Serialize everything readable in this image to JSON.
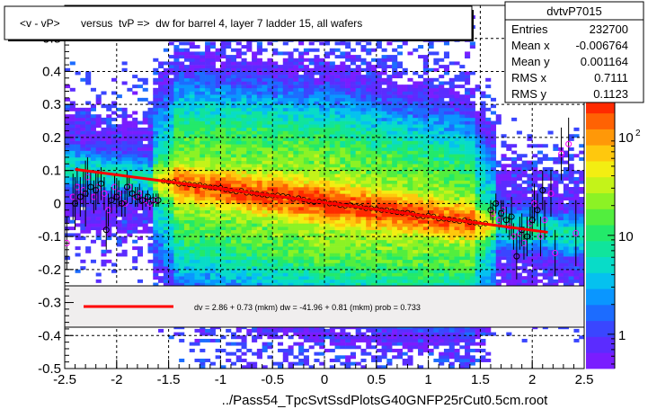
{
  "chart_data": {
    "type": "heatmap",
    "title": "<v - vP>       versus  tvP =>  dw for barrel 4, layer 7 ladder 15, all wafers",
    "xlabel": "../Pass54_TpcSvtSsdPlotsG40GNFP25rCut0.5cm.root",
    "ylabel": "",
    "xlim": [
      -2.5,
      2.5
    ],
    "ylim": [
      -0.5,
      0.6
    ],
    "x_ticks": [
      "-2.5",
      "-2",
      "-1.5",
      "-1",
      "-0.5",
      "0",
      "0.5",
      "1",
      "1.5",
      "2",
      "2.5"
    ],
    "x_tick_values": [
      -2.5,
      -2,
      -1.5,
      -1,
      -0.5,
      0,
      0.5,
      1,
      1.5,
      2,
      2.5
    ],
    "y_ticks": [
      "-0.5",
      "-0.4",
      "-0.3",
      "-0.2",
      "-0.1",
      "0",
      "0.1",
      "0.2",
      "0.3",
      "0.4",
      "0.5"
    ],
    "y_tick_values": [
      -0.5,
      -0.4,
      -0.3,
      -0.2,
      -0.1,
      0,
      0.1,
      0.2,
      0.3,
      0.4,
      0.5
    ],
    "grid": true,
    "colorbar": {
      "labels": [
        "1",
        "10",
        "10"
      ],
      "label_values": [
        1,
        10,
        100
      ],
      "exponent": "2",
      "range": [
        0.45,
        250
      ]
    },
    "stats": {
      "name": "dvtvP7015",
      "rows": [
        {
          "label": "Entries",
          "value": "232700"
        },
        {
          "label": "Mean x",
          "value": "-0.006764"
        },
        {
          "label": "Mean y",
          "value": "0.001164"
        },
        {
          "label": "RMS x",
          "value": "0.7111"
        },
        {
          "label": "RMS y",
          "value": "0.1123"
        }
      ]
    },
    "fit": {
      "legend_text": "dv =    2.86 +  0.73 (mkm) dw =  -41.96 +  0.81 (mkm) prob = 0.733",
      "x_range": [
        -2.4,
        2.15
      ],
      "intercept": 0.00286,
      "slope": -0.04196,
      "color": "#ff0000"
    },
    "profile_black": {
      "x": [
        -2.4,
        -2.35,
        -2.3,
        -2.25,
        -2.2,
        -2.15,
        -2.1,
        -2.05,
        -2.0,
        -1.95,
        -1.9,
        -1.85,
        -1.8,
        -1.75,
        -1.7,
        -1.65,
        -1.6,
        1.6,
        1.65,
        1.7,
        1.75,
        1.8,
        1.85,
        1.9,
        1.95,
        2.0,
        2.05,
        2.1
      ],
      "y": [
        0.0,
        0.02,
        0.03,
        0.05,
        0.04,
        0.06,
        -0.08,
        0.01,
        0.02,
        0.0,
        0.05,
        0.03,
        0.02,
        0.01,
        0.02,
        0.01,
        0.01,
        -0.02,
        0.0,
        -0.03,
        -0.05,
        -0.04,
        -0.16,
        -0.08,
        -0.1,
        -0.05,
        -0.02,
        0.04
      ],
      "err": [
        0.08,
        0.06,
        0.1,
        0.05,
        0.06,
        0.05,
        0.06,
        0.04,
        0.05,
        0.04,
        0.05,
        0.03,
        0.03,
        0.03,
        0.02,
        0.02,
        0.02,
        0.03,
        0.03,
        0.04,
        0.04,
        0.06,
        0.07,
        0.05,
        0.06,
        0.05,
        0.05,
        0.06
      ]
    },
    "profile_magenta": {
      "x": [
        -2.48,
        -2.42,
        -2.38,
        -2.32,
        -2.28,
        -2.22,
        -2.18,
        -2.12,
        -2.08,
        -2.02,
        -1.98,
        -1.92,
        -1.88,
        -1.82,
        -1.78,
        -1.72,
        -1.68,
        -1.62,
        1.62,
        1.68,
        1.72,
        1.78,
        1.82,
        1.88,
        1.92,
        1.98,
        2.02,
        2.08,
        2.12,
        2.18,
        2.22,
        2.28,
        2.35,
        2.42
      ],
      "y": [
        -0.12,
        0.02,
        0.05,
        0.04,
        0.08,
        0.02,
        0.05,
        0.03,
        -0.02,
        0.05,
        0.03,
        0.0,
        0.05,
        0.02,
        0.03,
        0.01,
        0.0,
        0.01,
        -0.03,
        -0.05,
        -0.02,
        -0.07,
        -0.1,
        -0.09,
        -0.12,
        -0.06,
        0.0,
        -0.1,
        -0.05,
        0.03,
        -0.15,
        0.15,
        0.18,
        -0.09
      ],
      "err": [
        0.08,
        0.07,
        0.06,
        0.06,
        0.06,
        0.05,
        0.05,
        0.05,
        0.05,
        0.04,
        0.04,
        0.04,
        0.03,
        0.03,
        0.03,
        0.02,
        0.02,
        0.02,
        0.03,
        0.03,
        0.03,
        0.04,
        0.04,
        0.05,
        0.05,
        0.05,
        0.06,
        0.06,
        0.06,
        0.07,
        0.07,
        0.08,
        0.08,
        0.1
      ]
    }
  }
}
